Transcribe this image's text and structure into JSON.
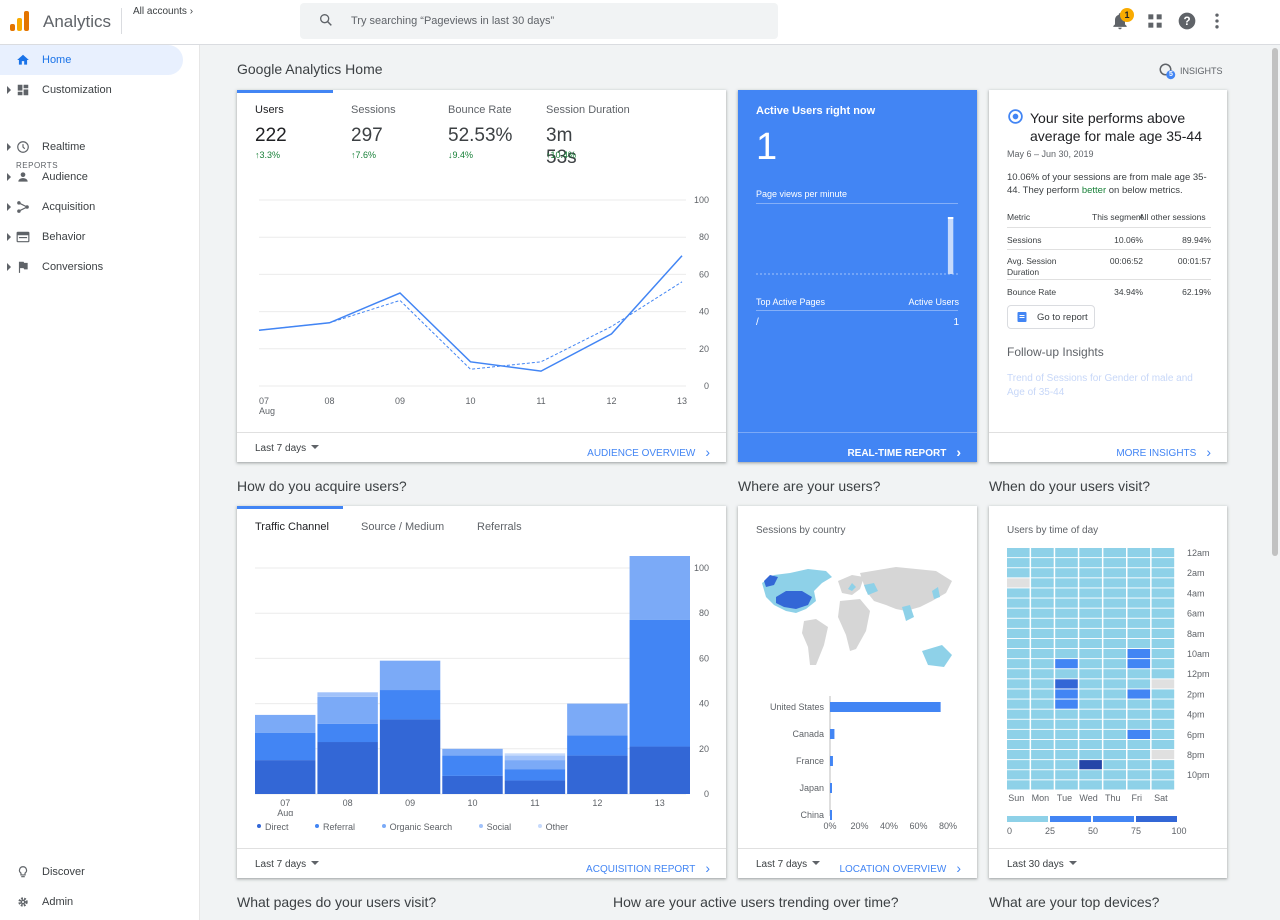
{
  "header": {
    "app_name": "Analytics",
    "accounts_label": "All accounts",
    "search_placeholder": "Try searching “Pageviews in last 30 days”",
    "notification_count": "1",
    "icons": [
      "notifications-icon",
      "apps-icon",
      "help-icon",
      "more-vert-icon"
    ]
  },
  "sidebar": {
    "items": [
      {
        "label": "Home",
        "icon": "home-icon",
        "active": true
      },
      {
        "label": "Customization",
        "icon": "dashboard-icon"
      }
    ],
    "reports_header": "REPORTS",
    "reports": [
      {
        "label": "Realtime",
        "icon": "clock-icon"
      },
      {
        "label": "Audience",
        "icon": "person-icon"
      },
      {
        "label": "Acquisition",
        "icon": "acquisition-icon"
      },
      {
        "label": "Behavior",
        "icon": "behavior-icon"
      },
      {
        "label": "Conversions",
        "icon": "flag-icon"
      }
    ],
    "bottom": [
      {
        "label": "Discover",
        "icon": "lightbulb-icon"
      },
      {
        "label": "Admin",
        "icon": "gear-icon"
      }
    ]
  },
  "page": {
    "title": "Google Analytics Home",
    "insights_label": "INSIGHTS",
    "insights_count": "5"
  },
  "overview": {
    "kpis": [
      {
        "label": "Users",
        "value": "222",
        "delta": "3.3%",
        "direction": "up"
      },
      {
        "label": "Sessions",
        "value": "297",
        "delta": "7.6%",
        "direction": "up"
      },
      {
        "label": "Bounce Rate",
        "value": "52.53%",
        "delta": "9.4%",
        "direction": "down"
      },
      {
        "label": "Session Duration",
        "value": "3m 53s",
        "delta": "10.4%",
        "direction": "up"
      }
    ],
    "range": "Last 7 days",
    "link": "AUDIENCE OVERVIEW"
  },
  "realtime": {
    "title": "Active Users right now",
    "value": "1",
    "subtitle": "Page views per minute",
    "top_pages_label": "Top Active Pages",
    "active_users_label": "Active Users",
    "pages": [
      {
        "page": "/",
        "users": "1"
      }
    ],
    "link": "REAL-TIME REPORT"
  },
  "insight": {
    "title": "Your site performs above average for male age 35-44",
    "date": "May 6 – Jun 30, 2019",
    "text_before": "10.06% of your sessions are from male age 35-44. They perform ",
    "text_better": "better",
    "text_after": " on below metrics.",
    "col_metric": "Metric",
    "col_segment": "This segment",
    "col_all": "All other sessions",
    "rows": [
      {
        "metric": "Sessions",
        "segment": "10.06%",
        "other": "89.94%"
      },
      {
        "metric": "Avg. Session Duration",
        "segment": "00:06:52",
        "other": "00:01:57"
      },
      {
        "metric": "Bounce Rate",
        "segment": "34.94%",
        "other": "62.19%"
      }
    ],
    "button": "Go to report",
    "followup": "Follow-up Insights",
    "trend_link": "Trend of Sessions for Gender of male and Age of 35-44",
    "link": "MORE INSIGHTS"
  },
  "sections": {
    "acquire": "How do you acquire users?",
    "where": "Where are your users?",
    "when": "When do your users visit?",
    "pages": "What pages do your users visit?",
    "trending": "How are your active users trending over time?",
    "devices": "What are your top devices?"
  },
  "acquisition": {
    "tabs": [
      "Traffic Channel",
      "Source / Medium",
      "Referrals"
    ],
    "range": "Last 7 days",
    "link": "ACQUISITION REPORT"
  },
  "location": {
    "subtitle": "Sessions by country",
    "range": "Last 7 days",
    "link": "LOCATION OVERVIEW"
  },
  "time_of_day": {
    "subtitle": "Users by time of day",
    "range": "Last 30 days"
  },
  "colors": {
    "accent": "#4285f4",
    "positive": "#188038",
    "direct": "#3367d6",
    "referral": "#4285f4",
    "organic": "#7baaf7",
    "social": "#a1c2fa",
    "other": "#c6dafc",
    "heat_low": "#8ed1e8",
    "heat_empty": "#e0e0e0"
  },
  "chart_data": [
    {
      "type": "line",
      "name": "overview-users",
      "x": [
        "07 Aug",
        "08",
        "09",
        "10",
        "11",
        "12",
        "13"
      ],
      "series": [
        {
          "name": "Users",
          "values": [
            30,
            34,
            50,
            13,
            8,
            28,
            70
          ],
          "style": "solid"
        },
        {
          "values": [
            30,
            34,
            46,
            9,
            13,
            32,
            56
          ],
          "style": "dashed"
        }
      ],
      "ylim": [
        0,
        100
      ],
      "yticks": [
        0,
        20,
        40,
        60,
        80,
        100
      ]
    },
    {
      "type": "bar",
      "name": "realtime-pageviews",
      "values": [
        0,
        0,
        0,
        0,
        0,
        0,
        0,
        0,
        0,
        0,
        0,
        0,
        0,
        0,
        0,
        0,
        0,
        0,
        0,
        0,
        0,
        0,
        0,
        0,
        0,
        0,
        0,
        0,
        0,
        0,
        0,
        0,
        0,
        0,
        0,
        0,
        0,
        0,
        0,
        0,
        0,
        0,
        0,
        0,
        0,
        0,
        0,
        0,
        0,
        0,
        0,
        0,
        0,
        0,
        0,
        0,
        0,
        1,
        0,
        0
      ]
    },
    {
      "type": "bar",
      "name": "traffic-channel",
      "stacked": true,
      "categories": [
        "07 Aug",
        "08",
        "09",
        "10",
        "11",
        "12",
        "13"
      ],
      "series": [
        {
          "name": "Direct",
          "values": [
            15,
            23,
            33,
            8,
            6,
            17,
            21
          ]
        },
        {
          "name": "Referral",
          "values": [
            12,
            8,
            13,
            9,
            5,
            9,
            56
          ]
        },
        {
          "name": "Organic Search",
          "values": [
            8,
            12,
            13,
            3,
            4,
            14,
            29
          ]
        },
        {
          "name": "Social",
          "values": [
            0,
            2,
            0,
            0,
            2,
            0,
            4
          ]
        },
        {
          "name": "Other",
          "values": [
            0,
            0,
            0,
            0,
            1,
            0,
            0
          ]
        }
      ],
      "ylim": [
        0,
        100
      ],
      "yticks": [
        0,
        20,
        40,
        60,
        80,
        100
      ]
    },
    {
      "type": "bar",
      "name": "sessions-by-country",
      "orientation": "horizontal",
      "categories": [
        "United States",
        "Canada",
        "France",
        "Japan",
        "China"
      ],
      "values": [
        75,
        3,
        2,
        1,
        1
      ],
      "xticks": [
        "0%",
        "20%",
        "40%",
        "60%",
        "80%"
      ],
      "xlim": [
        0,
        80
      ]
    },
    {
      "type": "heatmap",
      "name": "users-by-time-of-day",
      "columns": [
        "Sun",
        "Mon",
        "Tue",
        "Wed",
        "Thu",
        "Fri",
        "Sat"
      ],
      "row_labels": [
        "12am",
        "2am",
        "4am",
        "6am",
        "8am",
        "10am",
        "12pm",
        "2pm",
        "4pm",
        "6pm",
        "8pm",
        "10pm"
      ],
      "rows": 24,
      "scale": [
        "0",
        "25",
        "50",
        "75",
        "100"
      ],
      "values": [
        [
          20,
          20,
          20,
          20,
          20,
          20,
          20
        ],
        [
          20,
          20,
          20,
          20,
          20,
          20,
          20
        ],
        [
          20,
          20,
          20,
          20,
          20,
          20,
          20
        ],
        [
          0,
          20,
          20,
          20,
          20,
          20,
          20
        ],
        [
          20,
          20,
          20,
          20,
          20,
          20,
          20
        ],
        [
          20,
          20,
          20,
          20,
          20,
          20,
          20
        ],
        [
          20,
          20,
          20,
          20,
          20,
          20,
          20
        ],
        [
          20,
          20,
          20,
          20,
          20,
          20,
          20
        ],
        [
          20,
          20,
          20,
          20,
          20,
          20,
          20
        ],
        [
          20,
          20,
          20,
          20,
          20,
          20,
          20
        ],
        [
          20,
          20,
          20,
          20,
          20,
          45,
          20
        ],
        [
          20,
          20,
          50,
          20,
          20,
          45,
          20
        ],
        [
          20,
          20,
          20,
          20,
          20,
          20,
          20
        ],
        [
          20,
          20,
          60,
          20,
          20,
          20,
          0
        ],
        [
          20,
          20,
          45,
          20,
          20,
          45,
          20
        ],
        [
          20,
          20,
          45,
          20,
          20,
          20,
          20
        ],
        [
          20,
          20,
          20,
          20,
          20,
          20,
          20
        ],
        [
          20,
          20,
          20,
          20,
          20,
          20,
          20
        ],
        [
          20,
          20,
          20,
          20,
          20,
          45,
          20
        ],
        [
          20,
          20,
          20,
          20,
          20,
          20,
          20
        ],
        [
          20,
          20,
          20,
          20,
          20,
          20,
          0
        ],
        [
          20,
          20,
          20,
          85,
          20,
          20,
          20
        ],
        [
          20,
          20,
          20,
          20,
          20,
          20,
          20
        ],
        [
          20,
          20,
          20,
          20,
          20,
          20,
          20
        ]
      ]
    }
  ]
}
